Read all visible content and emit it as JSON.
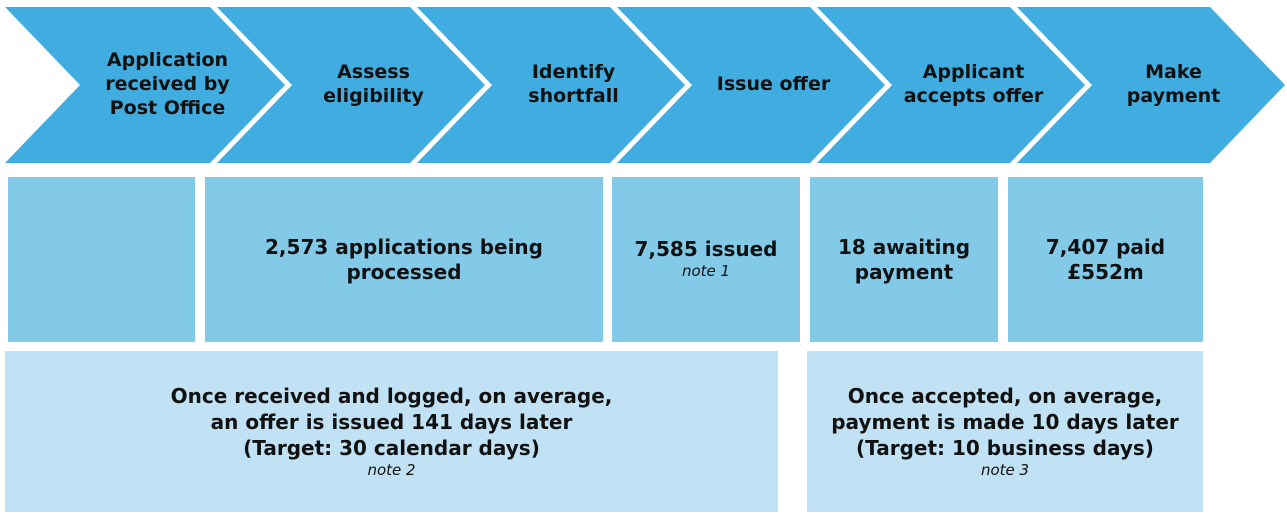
{
  "colors": {
    "chevron_blue": "#41ACDF",
    "stat_blue": "#83CAE9",
    "info_blue": "#C0E2F4",
    "text": "#111111",
    "background": "#FFFFFF"
  },
  "steps": [
    {
      "label": "Application\nreceived by\nPost Office"
    },
    {
      "label": "Assess\neligibility"
    },
    {
      "label": "Identify\nshortfall"
    },
    {
      "label": "Issue offer"
    },
    {
      "label": "Applicant\naccepts offer"
    },
    {
      "label": "Make\npayment"
    }
  ],
  "stats": [
    {
      "value": ""
    },
    {
      "value": "2,573 applications being\nprocessed"
    },
    {
      "value": "7,585 issued",
      "note": "note 1"
    },
    {
      "value": "18 awaiting\npayment"
    },
    {
      "value": "7,407 paid\n£552m"
    }
  ],
  "infos": [
    {
      "text": "Once received and logged, on average,\nan offer is issued 141 days later\n(Target: 30 calendar days)",
      "note": "note 2"
    },
    {
      "text": "Once accepted, on average,\npayment is made 10 days later\n(Target: 10 business days)",
      "note": "note 3"
    }
  ]
}
